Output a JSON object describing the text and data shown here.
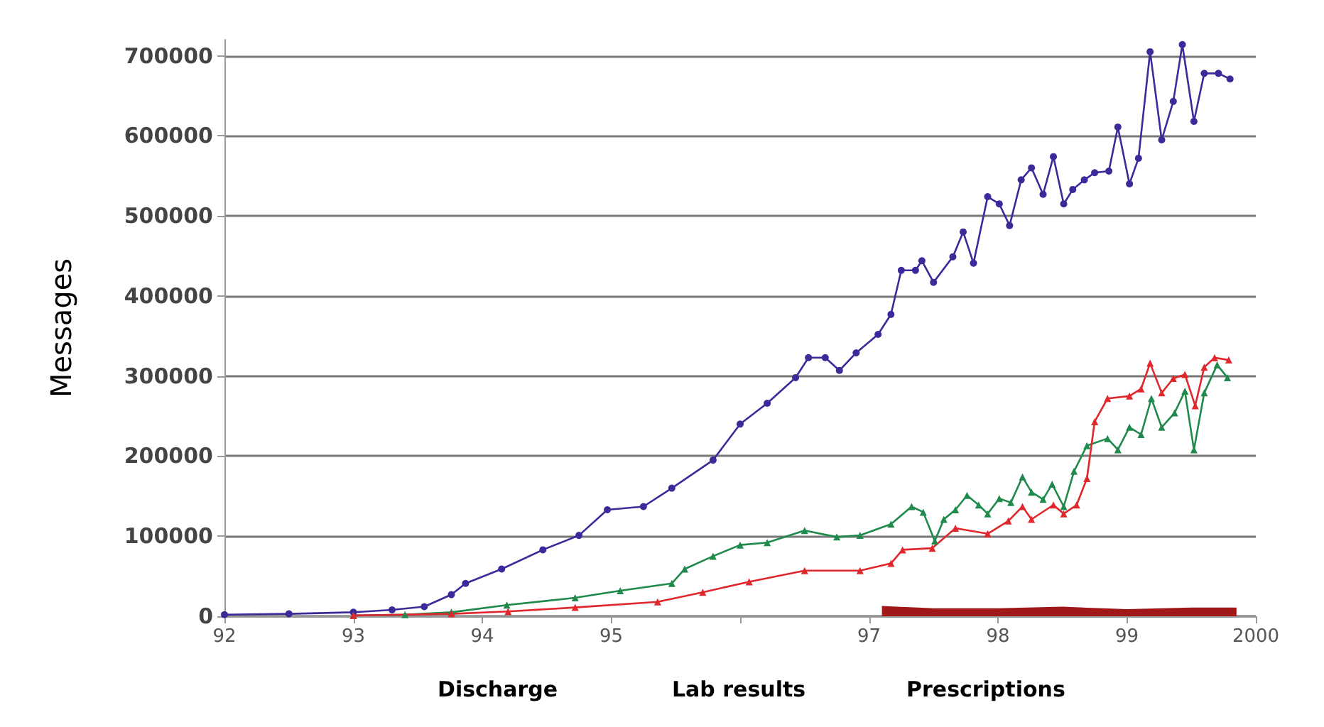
{
  "chart_data": {
    "type": "line",
    "ylabel": "Messages",
    "xlim": [
      1992,
      2000
    ],
    "xticks": [
      {
        "value": 1992,
        "label": "92"
      },
      {
        "value": 1993,
        "label": "93"
      },
      {
        "value": 1994,
        "label": "94"
      },
      {
        "value": 1995,
        "label": "95"
      },
      {
        "value": 1996,
        "label": null
      },
      {
        "value": 1997,
        "label": "97"
      },
      {
        "value": 1998,
        "label": "98"
      },
      {
        "value": 1999,
        "label": "99"
      },
      2000
    ],
    "ylim": [
      0,
      720000
    ],
    "yticks": [
      0,
      100000,
      200000,
      300000,
      400000,
      500000,
      600000,
      700000
    ],
    "grid": "y",
    "annotations": [
      "Discharge",
      "Lab results",
      "Prescriptions"
    ],
    "series": [
      {
        "color": "#3a2a9a",
        "marker": "circle",
        "x": [
          1992,
          1992.5,
          1993,
          1993.3,
          1993.55,
          1993.76,
          1993.87,
          1994.15,
          1994.47,
          1994.75,
          1994.97,
          1995.25,
          1995.47,
          1995.79,
          1996.0,
          1996.21,
          1996.43,
          1996.53,
          1996.66,
          1996.77,
          1996.9,
          1997.07,
          1997.17,
          1997.25,
          1997.36,
          1997.41,
          1997.5,
          1997.65,
          1997.73,
          1997.81,
          1997.92,
          1998.01,
          1998.09,
          1998.18,
          1998.26,
          1998.35,
          1998.43,
          1998.51,
          1998.58,
          1998.67,
          1998.75,
          1998.86,
          1998.93,
          1999.02,
          1999.09,
          1999.18,
          1999.27,
          1999.36,
          1999.43,
          1999.52,
          1999.6,
          1999.71,
          1999.8
        ],
        "values": [
          2000,
          3000,
          5000,
          8000,
          12000,
          27000,
          41000,
          59000,
          83000,
          101000,
          133000,
          137000,
          160000,
          195000,
          240000,
          266000,
          298000,
          323000,
          323000,
          307000,
          329000,
          352000,
          377000,
          432000,
          432000,
          444000,
          417000,
          449000,
          480000,
          441000,
          524000,
          515000,
          488000,
          545000,
          560000,
          527000,
          574000,
          515000,
          533000,
          545000,
          554000,
          556000,
          611000,
          540000,
          572000,
          705000,
          595000,
          643000,
          714000,
          618000,
          678000,
          678000,
          671000
        ]
      },
      {
        "color": "#1f8a4c",
        "marker": "triangle",
        "x": [
          1993,
          1993.4,
          1993.76,
          1994.19,
          1994.72,
          1995.07,
          1995.47,
          1995.57,
          1995.79,
          1996.0,
          1996.21,
          1996.5,
          1996.75,
          1996.93,
          1997.17,
          1997.33,
          1997.42,
          1997.51,
          1997.58,
          1997.67,
          1997.76,
          1997.85,
          1997.92,
          1998.01,
          1998.1,
          1998.19,
          1998.26,
          1998.35,
          1998.42,
          1998.51,
          1998.59,
          1998.69,
          1998.85,
          1998.93,
          1999.02,
          1999.11,
          1999.19,
          1999.27,
          1999.37,
          1999.45,
          1999.52,
          1999.6,
          1999.7,
          1999.78
        ],
        "values": [
          1000,
          2000,
          5000,
          14000,
          23000,
          32000,
          41000,
          59000,
          75000,
          89000,
          92000,
          107000,
          99000,
          101000,
          115000,
          137000,
          130000,
          94000,
          121000,
          133000,
          151000,
          139000,
          128000,
          147000,
          142000,
          174000,
          155000,
          146000,
          165000,
          137000,
          181000,
          213000,
          222000,
          208000,
          236000,
          227000,
          272000,
          236000,
          254000,
          281000,
          208000,
          279000,
          314000,
          298000
        ]
      },
      {
        "color": "#e0282c",
        "marker": "triangle",
        "x": [
          1993,
          1993.76,
          1994.2,
          1994.72,
          1995.36,
          1995.71,
          1996.07,
          1996.5,
          1996.93,
          1997.17,
          1997.26,
          1997.49,
          1997.67,
          1997.92,
          1998.08,
          1998.19,
          1998.26,
          1998.43,
          1998.51,
          1998.61,
          1998.69,
          1998.75,
          1998.85,
          1999.02,
          1999.11,
          1999.18,
          1999.27,
          1999.36,
          1999.45,
          1999.53,
          1999.6,
          1999.68,
          1999.79
        ],
        "values": [
          1000,
          3000,
          6000,
          11000,
          18000,
          30000,
          43000,
          57000,
          57000,
          66000,
          83000,
          85000,
          110000,
          103000,
          119000,
          137000,
          121000,
          139000,
          128000,
          139000,
          172000,
          243000,
          272000,
          275000,
          284000,
          316000,
          279000,
          297000,
          302000,
          263000,
          311000,
          323000,
          320000
        ]
      },
      {
        "type": "area",
        "color": "#a01818",
        "marker": "none",
        "x": [
          1997.1,
          1997.5,
          1998,
          1998.5,
          1999,
          1999.5,
          1999.85
        ],
        "values": [
          12000,
          9000,
          9000,
          11000,
          8000,
          10000,
          10000
        ]
      }
    ]
  }
}
